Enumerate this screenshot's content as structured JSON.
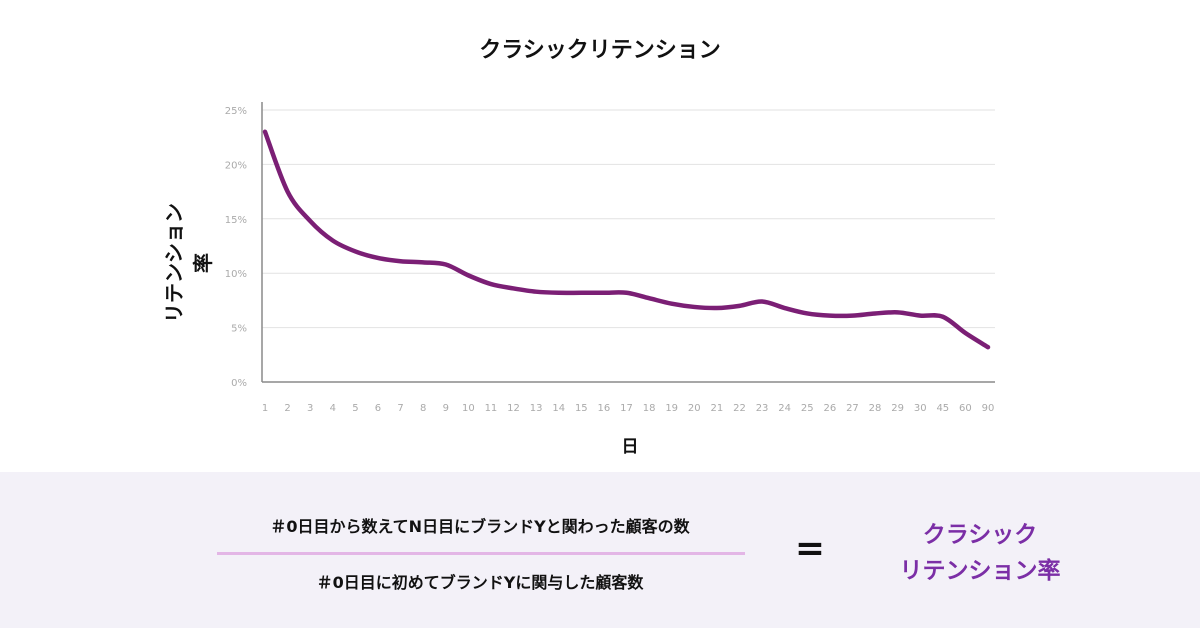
{
  "chart_data": {
    "type": "line",
    "title": "クラシックリテンション",
    "xlabel": "日",
    "ylabel": "リテンション率",
    "categories": [
      "1",
      "2",
      "3",
      "4",
      "5",
      "6",
      "7",
      "8",
      "9",
      "10",
      "11",
      "12",
      "13",
      "14",
      "15",
      "16",
      "17",
      "18",
      "19",
      "20",
      "21",
      "22",
      "23",
      "24",
      "25",
      "26",
      "27",
      "28",
      "29",
      "30",
      "45",
      "60",
      "90"
    ],
    "y_ticks": [
      "0%",
      "5%",
      "10%",
      "15%",
      "20%",
      "25%"
    ],
    "ylim": [
      0,
      25
    ],
    "grid": true,
    "series": [
      {
        "values": [
          23,
          17.5,
          14.8,
          13.0,
          12.0,
          11.4,
          11.1,
          11.0,
          10.8,
          9.8,
          9.0,
          8.6,
          8.3,
          8.2,
          8.2,
          8.2,
          8.2,
          7.7,
          7.2,
          6.9,
          6.8,
          7.0,
          7.4,
          6.8,
          6.3,
          6.1,
          6.1,
          6.3,
          6.4,
          6.1,
          6.0,
          4.5,
          3.2
        ],
        "color": "#7b1f75"
      }
    ]
  },
  "formula": {
    "numerator": "＃0日目から数えてN日目にブランドYと関わった顧客の数",
    "denominator": "＃0日目に初めてブランドYに関与した顧客数",
    "equals": "=",
    "result_line1": "クラシック",
    "result_line2": "リテンション率",
    "result_color": "#7b2ea6"
  }
}
